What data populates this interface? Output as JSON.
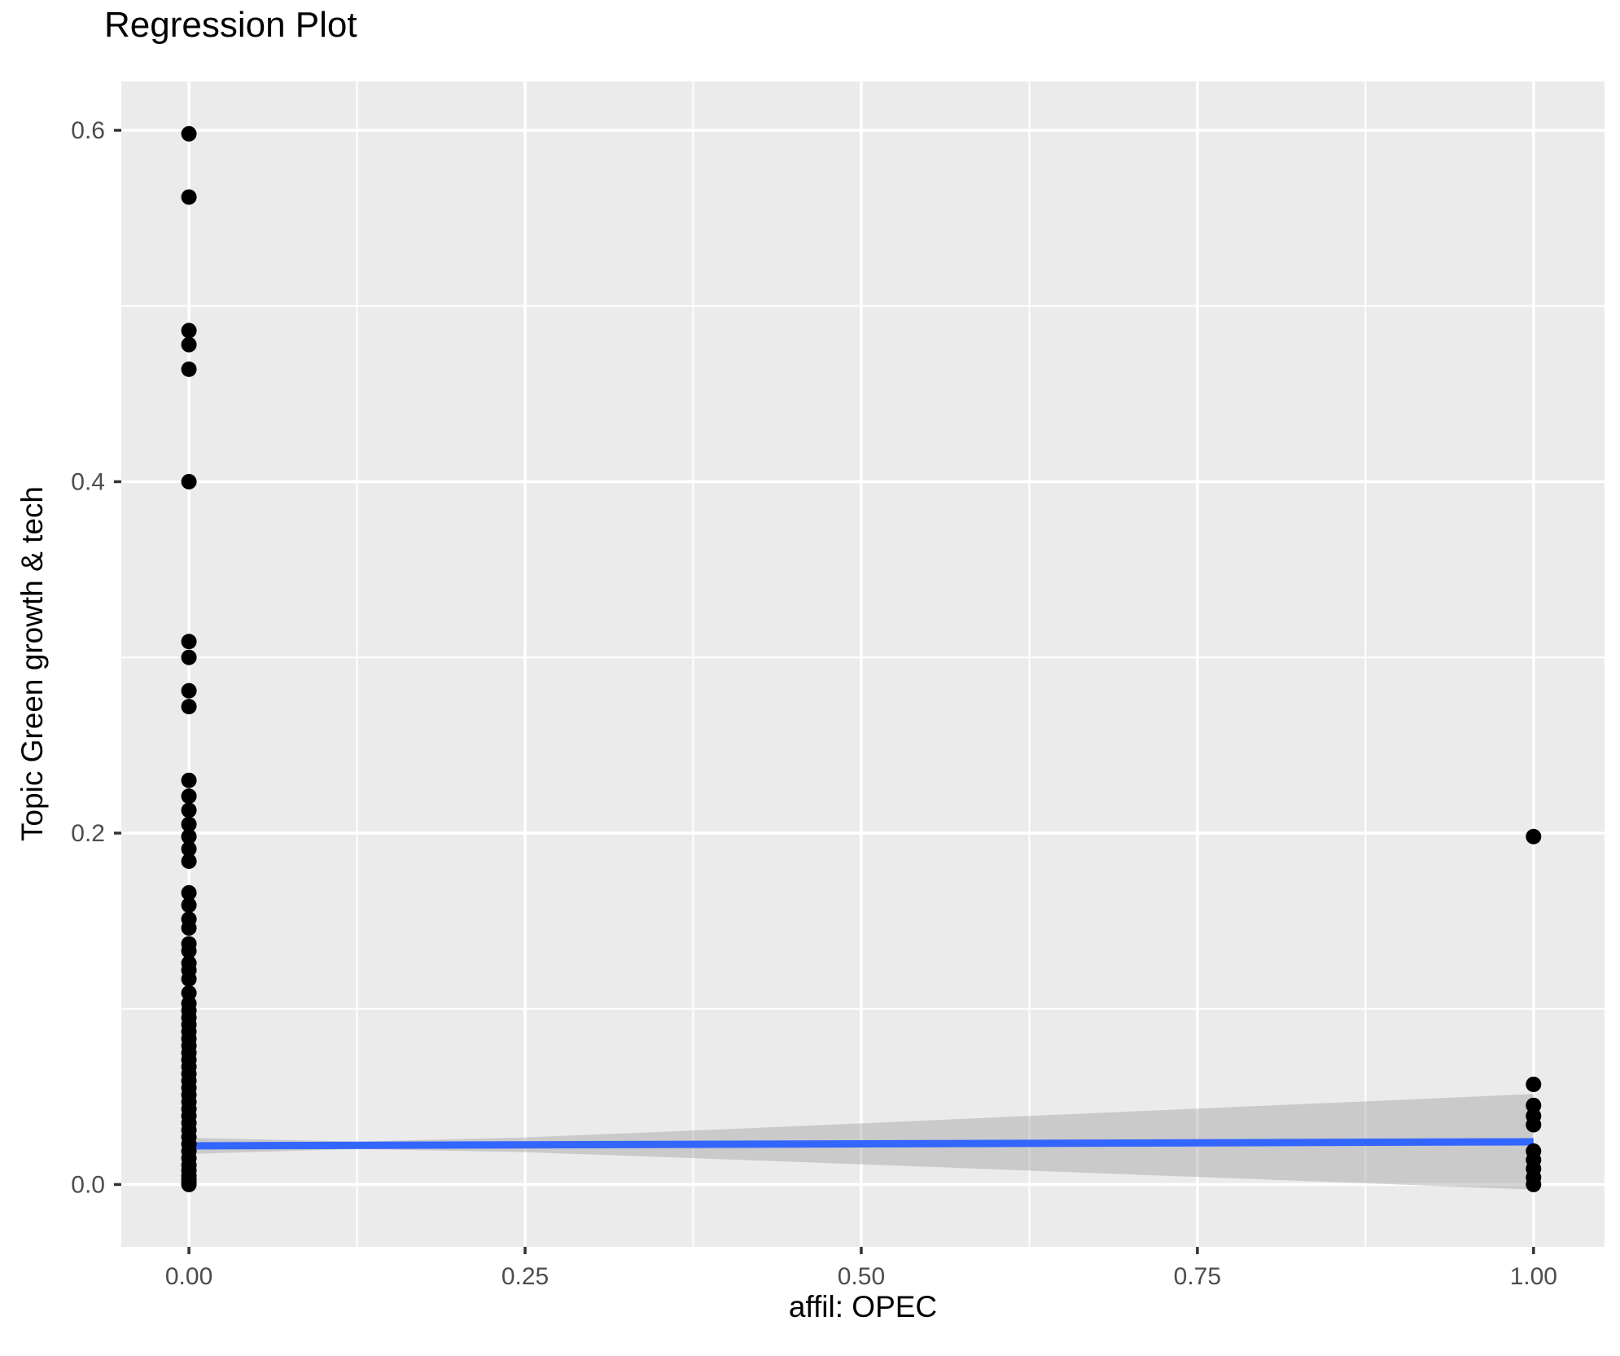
{
  "chart_data": {
    "type": "scatter",
    "title": "Regression Plot",
    "xlabel": "affil: OPEC",
    "ylabel": "Topic Green growth & tech",
    "xlim": [
      -0.0503,
      1.0528
    ],
    "ylim": [
      -0.0355,
      0.6278
    ],
    "grid": true,
    "legend": false,
    "x_axis": {
      "tick_values": [
        0,
        0.25,
        0.5,
        0.75,
        1
      ],
      "tick_labels": [
        "0.00",
        "0.25",
        "0.50",
        "0.75",
        "1.00"
      ],
      "minor_ticks": [
        0.125,
        0.375,
        0.625,
        0.875
      ]
    },
    "y_axis": {
      "tick_values": [
        0,
        0.2,
        0.4,
        0.6
      ],
      "tick_labels": [
        "0.0",
        "0.2",
        "0.4",
        "0.6"
      ],
      "minor_ticks": [
        0.1,
        0.3,
        0.5
      ]
    },
    "series": [
      {
        "name": "observations",
        "type": "scatter",
        "color": "#000000",
        "points": [
          [
            0,
            0.598
          ],
          [
            0,
            0.562
          ],
          [
            0,
            0.486
          ],
          [
            0,
            0.478
          ],
          [
            0,
            0.464
          ],
          [
            0,
            0.4
          ],
          [
            0,
            0.309
          ],
          [
            0,
            0.3
          ],
          [
            0,
            0.281
          ],
          [
            0,
            0.272
          ],
          [
            0,
            0.23
          ],
          [
            0,
            0.221
          ],
          [
            0,
            0.213
          ],
          [
            0,
            0.205
          ],
          [
            0,
            0.198
          ],
          [
            0,
            0.191
          ],
          [
            0,
            0.184
          ],
          [
            0,
            0.166
          ],
          [
            0,
            0.159
          ],
          [
            0,
            0.151
          ],
          [
            0,
            0.146
          ],
          [
            0,
            0.137
          ],
          [
            0,
            0.133
          ],
          [
            0,
            0.126
          ],
          [
            0,
            0.122
          ],
          [
            0,
            0.117
          ],
          [
            0,
            0.109
          ],
          [
            0,
            0.103
          ],
          [
            0,
            0.099
          ],
          [
            0,
            0.095
          ],
          [
            0,
            0.091
          ],
          [
            0,
            0.087
          ],
          [
            0,
            0.083
          ],
          [
            0,
            0.079
          ],
          [
            0,
            0.075
          ],
          [
            0,
            0.071
          ],
          [
            0,
            0.067
          ],
          [
            0,
            0.063
          ],
          [
            0,
            0.059
          ],
          [
            0,
            0.055
          ],
          [
            0,
            0.051
          ],
          [
            0,
            0.047
          ],
          [
            0,
            0.043
          ],
          [
            0,
            0.039
          ],
          [
            0,
            0.035
          ],
          [
            0,
            0.031
          ],
          [
            0,
            0.027
          ],
          [
            0,
            0.023
          ],
          [
            0,
            0.019
          ],
          [
            0,
            0.015
          ],
          [
            0,
            0.011
          ],
          [
            0,
            0.008
          ],
          [
            0,
            0.005
          ],
          [
            0,
            0.003
          ],
          [
            0,
            0.001
          ],
          [
            0,
            0.0
          ],
          [
            1,
            0.198
          ],
          [
            1,
            0.057
          ],
          [
            1,
            0.045
          ],
          [
            1,
            0.039
          ],
          [
            1,
            0.034
          ],
          [
            1,
            0.019
          ],
          [
            1,
            0.014
          ],
          [
            1,
            0.009
          ],
          [
            1,
            0.004
          ],
          [
            1,
            0.0
          ]
        ]
      }
    ],
    "regression_line": {
      "x": [
        0,
        1
      ],
      "y": [
        0.022,
        0.0243
      ],
      "color": "#3366FF"
    },
    "confidence_band": {
      "x": [
        0,
        0.125,
        0.25,
        0.375,
        0.5,
        0.625,
        0.75,
        0.875,
        1
      ],
      "upper": [
        0.0266,
        0.0244,
        0.0268,
        0.0307,
        0.0348,
        0.039,
        0.0432,
        0.0473,
        0.0515
      ],
      "lower": [
        0.0174,
        0.0202,
        0.0184,
        0.015,
        0.0115,
        0.0079,
        0.0043,
        0.0007,
        -0.0029
      ],
      "fill": "#999999",
      "opacity": 0.4
    },
    "style": {
      "panel_background": "#EBEBEB",
      "grid_color": "#FFFFFF",
      "point_color": "#000000",
      "tick_label_color": "#4D4D4D",
      "tick_mark_color": "#333333",
      "title_color": "#000000"
    }
  }
}
